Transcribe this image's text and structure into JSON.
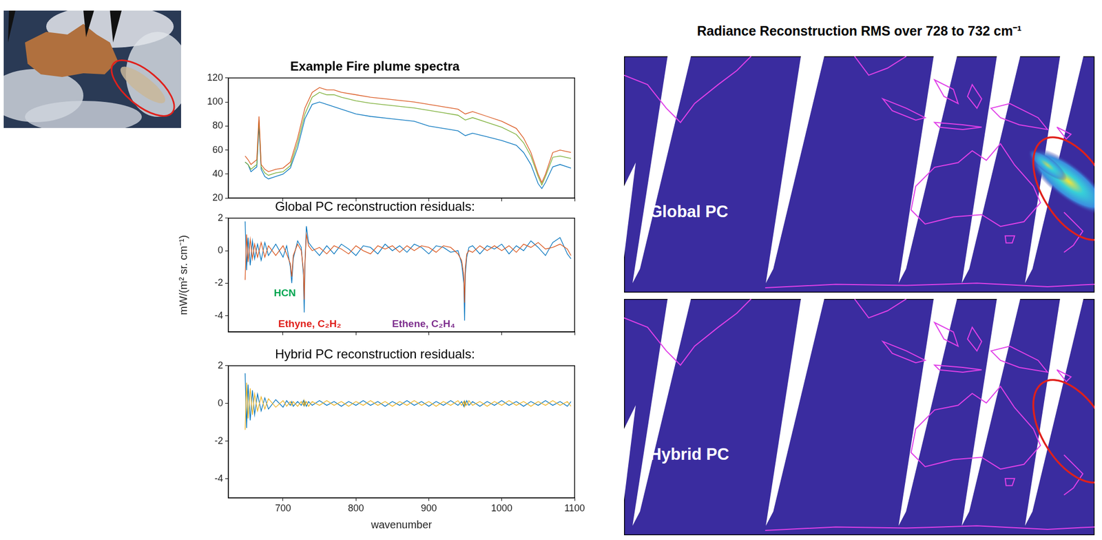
{
  "chart_data": [
    {
      "type": "line",
      "title": "Example Fire plume spectra",
      "x": [
        648,
        652,
        656,
        660,
        664,
        667,
        670,
        675,
        680,
        690,
        700,
        710,
        720,
        730,
        740,
        750,
        760,
        770,
        780,
        800,
        820,
        850,
        880,
        900,
        920,
        940,
        950,
        960,
        980,
        1000,
        1020,
        1030,
        1040,
        1050,
        1055,
        1060,
        1070,
        1080,
        1095
      ],
      "series": [
        {
          "color": "#D95319",
          "values": [
            55,
            52,
            48,
            50,
            52,
            88,
            48,
            44,
            42,
            44,
            45,
            50,
            70,
            95,
            108,
            112,
            110,
            110,
            108,
            106,
            104,
            102,
            100,
            98,
            96,
            94,
            90,
            92,
            88,
            84,
            78,
            70,
            58,
            40,
            33,
            40,
            58,
            60,
            58
          ]
        },
        {
          "color": "#77AC30",
          "values": [
            50,
            48,
            44,
            46,
            48,
            85,
            46,
            41,
            39,
            41,
            42,
            47,
            66,
            90,
            104,
            108,
            106,
            106,
            104,
            101,
            99,
            97,
            95,
            93,
            91,
            89,
            85,
            87,
            83,
            79,
            73,
            66,
            55,
            38,
            31,
            38,
            54,
            55,
            53
          ]
        },
        {
          "color": "#0072BD",
          "values": [
            50,
            48,
            42,
            44,
            46,
            80,
            44,
            38,
            36,
            38,
            40,
            45,
            62,
            86,
            98,
            100,
            98,
            96,
            94,
            90,
            88,
            86,
            84,
            80,
            78,
            76,
            72,
            74,
            71,
            68,
            64,
            58,
            48,
            32,
            28,
            33,
            46,
            48,
            45
          ]
        }
      ],
      "xlim": [
        625,
        1100
      ],
      "xticks": [
        700,
        800,
        900,
        1000,
        1100
      ],
      "ylim": [
        20,
        120
      ],
      "yticks": [
        20,
        40,
        60,
        80,
        100,
        120
      ],
      "grid": false,
      "tick_labels": "y"
    },
    {
      "type": "line",
      "title": "Global PC reconstruction residuals:",
      "ylabel": "mW/(m² sr. cm⁻¹)",
      "x": [
        648,
        650,
        652,
        655,
        658,
        661,
        665,
        670,
        675,
        680,
        690,
        700,
        705,
        710,
        712,
        714,
        720,
        725,
        728,
        729,
        730,
        732,
        735,
        740,
        750,
        760,
        770,
        780,
        790,
        800,
        810,
        820,
        830,
        840,
        850,
        860,
        870,
        880,
        890,
        900,
        910,
        920,
        930,
        940,
        945,
        948,
        949,
        950,
        952,
        955,
        960,
        970,
        980,
        990,
        1000,
        1010,
        1020,
        1030,
        1040,
        1050,
        1060,
        1070,
        1080,
        1090,
        1095
      ],
      "series": [
        {
          "color": "#D95319",
          "values": [
            -1.8,
            1.0,
            -0.7,
            0.7,
            -0.5,
            0.4,
            -0.4,
            0.5,
            -0.4,
            0.3,
            -0.3,
            0.3,
            -0.2,
            -0.8,
            -1.6,
            -0.3,
            0.4,
            0.0,
            -1.2,
            -3.0,
            -0.8,
            1.0,
            0.3,
            0.0,
            0.2,
            -0.2,
            0.3,
            0.1,
            -0.2,
            0.3,
            0.0,
            -0.2,
            0.3,
            0.1,
            0.3,
            -0.1,
            0.3,
            0.0,
            0.3,
            0.2,
            -0.1,
            0.3,
            0.2,
            -0.2,
            -0.6,
            -1.5,
            -3.2,
            -1.1,
            -0.2,
            0.0,
            -0.1,
            0.3,
            0.0,
            0.3,
            0.0,
            0.3,
            -0.1,
            0.4,
            0.2,
            0.5,
            0.1,
            0.2,
            0.4,
            0.1,
            -0.3
          ]
        },
        {
          "color": "#0072BD",
          "values": [
            1.8,
            -1.2,
            0.8,
            -0.9,
            0.6,
            -0.5,
            0.4,
            -0.6,
            0.5,
            -0.3,
            0.4,
            -0.4,
            0.3,
            -1.0,
            -2.0,
            -0.5,
            0.6,
            0.2,
            -1.5,
            -3.8,
            -1.0,
            1.5,
            0.5,
            0.2,
            -0.3,
            0.3,
            -0.2,
            0.4,
            0.1,
            -0.3,
            0.3,
            0.2,
            -0.2,
            0.4,
            0.0,
            0.3,
            -0.1,
            0.4,
            0.2,
            -0.2,
            0.3,
            0.2,
            -0.1,
            0.0,
            -0.8,
            -2.0,
            -4.3,
            -1.5,
            -0.4,
            0.2,
            0.3,
            -0.2,
            0.3,
            0.1,
            0.4,
            -0.2,
            0.3,
            0.0,
            0.6,
            0.2,
            -0.3,
            0.5,
            0.8,
            -0.2,
            -0.5
          ]
        }
      ],
      "annotations": [
        {
          "text": "HCN",
          "color": "#00A651"
        },
        {
          "text": "Ethyne, C₂H₂",
          "color": "#E0201B"
        },
        {
          "text": "Ethene, C₂H₄",
          "color": "#7E2F8E"
        }
      ],
      "xlim": [
        625,
        1100
      ],
      "xticks": [
        700,
        800,
        900,
        1000,
        1100
      ],
      "ylim": [
        -5,
        2
      ],
      "yticks": [
        -4,
        -2,
        0,
        2
      ],
      "grid": false,
      "tick_labels": "y"
    },
    {
      "type": "line",
      "title": "Hybrid PC reconstruction residuals:",
      "xlabel": "wavenumber",
      "x": [
        648,
        650,
        652,
        655,
        658,
        661,
        665,
        670,
        675,
        680,
        690,
        700,
        705,
        710,
        712,
        714,
        720,
        725,
        728,
        729,
        730,
        732,
        735,
        740,
        750,
        760,
        770,
        780,
        790,
        800,
        810,
        820,
        830,
        840,
        850,
        860,
        870,
        880,
        890,
        900,
        910,
        920,
        930,
        940,
        945,
        948,
        949,
        950,
        952,
        955,
        960,
        970,
        980,
        990,
        1000,
        1010,
        1020,
        1030,
        1040,
        1050,
        1060,
        1070,
        1080,
        1090,
        1095
      ],
      "series": [
        {
          "color": "#EDB120",
          "values": [
            -1.4,
            1.1,
            -0.8,
            0.8,
            -0.6,
            0.5,
            -0.4,
            0.35,
            -0.3,
            0.25,
            -0.2,
            0.15,
            -0.15,
            0.1,
            -0.1,
            0.1,
            -0.15,
            0.1,
            -0.1,
            0.15,
            -0.1,
            0.1,
            -0.15,
            0.1,
            -0.1,
            0.15,
            -0.1,
            0.1,
            -0.15,
            0.1,
            -0.1,
            0.15,
            -0.1,
            0.1,
            -0.15,
            0.1,
            -0.1,
            0.15,
            -0.1,
            0.1,
            -0.15,
            0.1,
            -0.1,
            0.15,
            -0.1,
            0.1,
            -0.15,
            0.1,
            -0.1,
            0.15,
            -0.1,
            0.1,
            -0.15,
            0.1,
            -0.1,
            0.15,
            -0.1,
            0.1,
            -0.15,
            0.1,
            -0.1,
            0.15,
            -0.1,
            0.1,
            -0.15
          ]
        },
        {
          "color": "#0072BD",
          "values": [
            1.6,
            -1.3,
            1.0,
            -0.9,
            0.7,
            -0.6,
            0.5,
            -0.4,
            0.3,
            -0.3,
            0.2,
            -0.2,
            0.15,
            -0.1,
            0.1,
            -0.15,
            0.1,
            -0.1,
            0.15,
            -0.1,
            0.1,
            -0.15,
            0.1,
            -0.1,
            0.15,
            -0.1,
            0.1,
            -0.15,
            0.1,
            -0.1,
            0.15,
            -0.1,
            0.1,
            -0.15,
            0.1,
            -0.1,
            0.15,
            -0.1,
            0.1,
            -0.15,
            0.1,
            -0.1,
            0.15,
            -0.1,
            0.1,
            -0.15,
            0.1,
            -0.1,
            0.15,
            -0.1,
            0.1,
            -0.15,
            0.1,
            -0.1,
            0.15,
            -0.1,
            0.1,
            -0.15,
            0.1,
            -0.1,
            0.15,
            -0.1,
            0.1,
            -0.15,
            0.1
          ]
        }
      ],
      "xlim": [
        625,
        1100
      ],
      "xticks": [
        700,
        800,
        900,
        1000,
        1100
      ],
      "ylim": [
        -5,
        2
      ],
      "yticks": [
        -4,
        -2,
        0,
        2
      ],
      "grid": false
    }
  ],
  "maps": {
    "title": "Radiance Reconstruction RMS over 728 to 732 cm⁻¹",
    "panels": [
      "Global PC",
      "Hybrid PC"
    ]
  }
}
